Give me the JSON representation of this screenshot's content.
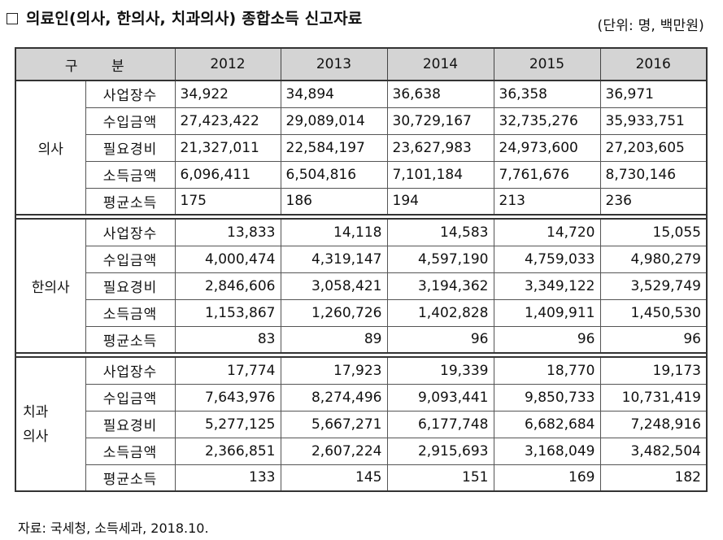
{
  "title": "의료인(의사, 한의사, 치과의사) 종합소득 신고자료",
  "unit": "(단위: 명, 백만원)",
  "header": {
    "gubun": "구 분",
    "years": [
      "2012",
      "2013",
      "2014",
      "2015",
      "2016"
    ]
  },
  "groups": [
    {
      "name": "의사",
      "align": "left",
      "rows": [
        {
          "item": "사업장수",
          "values": [
            "34,922",
            "34,894",
            "36,638",
            "36,358",
            "36,971"
          ]
        },
        {
          "item": "수입금액",
          "values": [
            "27,423,422",
            "29,089,014",
            "30,729,167",
            "32,735,276",
            "35,933,751"
          ]
        },
        {
          "item": "필요경비",
          "values": [
            "21,327,011",
            "22,584,197",
            "23,627,983",
            "24,973,600",
            "27,203,605"
          ]
        },
        {
          "item": "소득금액",
          "values": [
            "6,096,411",
            "6,504,816",
            "7,101,184",
            "7,761,676",
            "8,730,146"
          ]
        },
        {
          "item": "평균소득",
          "values": [
            "175",
            "186",
            "194",
            "213",
            "236"
          ]
        }
      ]
    },
    {
      "name": "한의사",
      "align": "right",
      "rows": [
        {
          "item": "사업장수",
          "values": [
            "13,833",
            "14,118",
            "14,583",
            "14,720",
            "15,055"
          ]
        },
        {
          "item": "수입금액",
          "values": [
            "4,000,474",
            "4,319,147",
            "4,597,190",
            "4,759,033",
            "4,980,279"
          ]
        },
        {
          "item": "필요경비",
          "values": [
            "2,846,606",
            "3,058,421",
            "3,194,362",
            "3,349,122",
            "3,529,749"
          ]
        },
        {
          "item": "소득금액",
          "values": [
            "1,153,867",
            "1,260,726",
            "1,402,828",
            "1,409,911",
            "1,450,530"
          ]
        },
        {
          "item": "평균소득",
          "values": [
            "83",
            "89",
            "96",
            "96",
            "96"
          ]
        }
      ]
    },
    {
      "name_lines": [
        "치과",
        "의사"
      ],
      "align": "right",
      "rows": [
        {
          "item": "사업장수",
          "values": [
            "17,774",
            "17,923",
            "19,339",
            "18,770",
            "19,173"
          ]
        },
        {
          "item": "수입금액",
          "values": [
            "7,643,976",
            "8,274,496",
            "9,093,441",
            "9,850,733",
            "10,731,419"
          ]
        },
        {
          "item": "필요경비",
          "values": [
            "5,277,125",
            "5,667,271",
            "6,177,748",
            "6,682,684",
            "7,248,916"
          ]
        },
        {
          "item": "소득금액",
          "values": [
            "2,366,851",
            "2,607,224",
            "2,915,693",
            "3,168,049",
            "3,482,504"
          ]
        },
        {
          "item": "평균소득",
          "values": [
            "133",
            "145",
            "151",
            "169",
            "182"
          ]
        }
      ]
    }
  ],
  "source": "자료: 국세청, 소득세과, 2018.10."
}
